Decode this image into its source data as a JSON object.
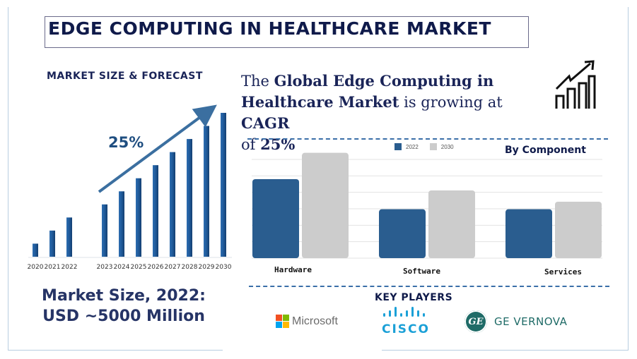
{
  "title": "EDGE COMPUTING IN HEALTHCARE MARKET",
  "left_panel": {
    "section_label": "MARKET SIZE & FORECAST",
    "growth_label": "25%",
    "market_size_line1": "Market Size, 2022:",
    "market_size_line2": "USD ~5000 Million"
  },
  "headline": {
    "part1": "The ",
    "part2": "Global Edge Computing in Healthcare Market",
    "part3": " is growing at ",
    "part4": "CAGR",
    "part5": " of ",
    "part6": "25%"
  },
  "component_section": {
    "title": "By Component"
  },
  "key_players": {
    "label": "KEY PLAYERS",
    "items": [
      {
        "name": "Microsoft",
        "icon": "microsoft-logo-icon"
      },
      {
        "name": "CISCO",
        "icon": "cisco-logo-icon"
      },
      {
        "name": "GE VERNOVA",
        "icon": "ge-logo-icon"
      }
    ]
  },
  "colors": {
    "navy": "#0f1a4a",
    "bar_blue": "#2a5d8f",
    "bar_grey": "#cccccc",
    "growth_bar": "#1f5a9a",
    "cisco": "#1ba0d7",
    "ge": "#1f6b67"
  },
  "chart_data": [
    {
      "type": "bar",
      "title": "MARKET SIZE & FORECAST",
      "categories": [
        "2020",
        "2021",
        "2022",
        "2023",
        "2024",
        "2025",
        "2026",
        "2027",
        "2028",
        "2029",
        "2030"
      ],
      "values": [
        1,
        2,
        3,
        4,
        5,
        6,
        7,
        8,
        9,
        10,
        11
      ],
      "annotation": "25%",
      "xlabel": "",
      "ylabel": "",
      "ylim": [
        0,
        11
      ],
      "grid": false
    },
    {
      "type": "bar",
      "title": "By Component",
      "categories": [
        "Hardware",
        "Software",
        "Services"
      ],
      "series": [
        {
          "name": "2022",
          "values": [
            4.2,
            2.6,
            2.6
          ]
        },
        {
          "name": "2030",
          "values": [
            5.6,
            3.6,
            3.0
          ]
        }
      ],
      "xlabel": "",
      "ylabel": "",
      "ylim": [
        0,
        6
      ],
      "grid": true,
      "legend": "top-center"
    }
  ]
}
